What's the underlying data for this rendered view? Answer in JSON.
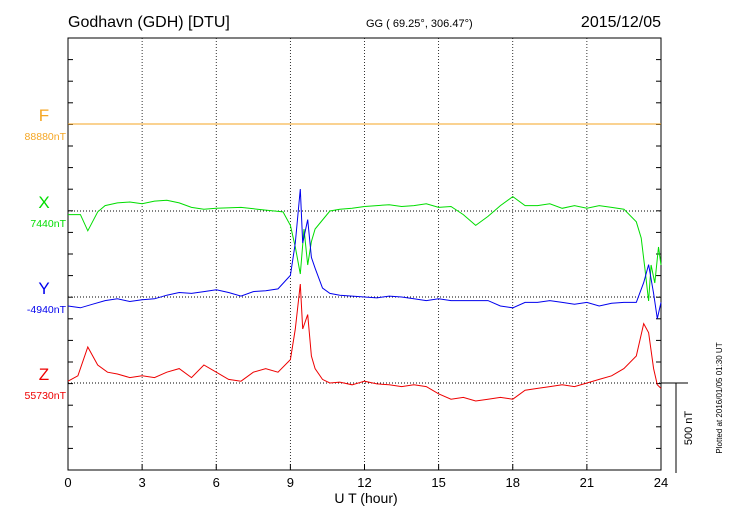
{
  "header": {
    "station": "Godhavn (GDH)  [DTU]",
    "coords": "GG ( 69.25°, 306.47°)",
    "date": "2015/12/05"
  },
  "footer": {
    "plotted": "Plotted at 2016/01/05 01:30 UT"
  },
  "chart_data": {
    "type": "line",
    "xlabel": "U T (hour)",
    "xlim": [
      0,
      24
    ],
    "xticks": [
      "0",
      "3",
      "6",
      "9",
      "12",
      "15",
      "18",
      "21",
      "24"
    ],
    "scale_bar": {
      "label": "500 nT",
      "nT": 500
    },
    "series": [
      {
        "name": "F",
        "baseline_label": "88880nT",
        "color": "#f5a623",
        "points": [
          [
            0,
            0
          ],
          [
            24,
            0
          ]
        ]
      },
      {
        "name": "X",
        "baseline_label": "7440nT",
        "color": "#00dd00",
        "points": [
          [
            0,
            -20
          ],
          [
            0.5,
            -20
          ],
          [
            0.8,
            -110
          ],
          [
            1.2,
            -5
          ],
          [
            1.5,
            30
          ],
          [
            2.0,
            45
          ],
          [
            2.5,
            50
          ],
          [
            3.0,
            40
          ],
          [
            3.5,
            55
          ],
          [
            4.0,
            60
          ],
          [
            4.5,
            45
          ],
          [
            5.0,
            20
          ],
          [
            5.5,
            10
          ],
          [
            6.0,
            15
          ],
          [
            7.0,
            20
          ],
          [
            8.0,
            5
          ],
          [
            8.7,
            -5
          ],
          [
            9.0,
            -80
          ],
          [
            9.2,
            -200
          ],
          [
            9.4,
            -350
          ],
          [
            9.55,
            -100
          ],
          [
            9.7,
            -300
          ],
          [
            9.85,
            -170
          ],
          [
            10.0,
            -100
          ],
          [
            10.3,
            -50
          ],
          [
            10.6,
            0
          ],
          [
            11.0,
            10
          ],
          [
            11.5,
            15
          ],
          [
            12.0,
            25
          ],
          [
            12.5,
            30
          ],
          [
            13.0,
            35
          ],
          [
            13.5,
            25
          ],
          [
            14.0,
            30
          ],
          [
            14.5,
            40
          ],
          [
            15.0,
            20
          ],
          [
            15.5,
            25
          ],
          [
            16.0,
            -20
          ],
          [
            16.5,
            -80
          ],
          [
            17.0,
            -30
          ],
          [
            17.5,
            30
          ],
          [
            18.0,
            80
          ],
          [
            18.5,
            30
          ],
          [
            19.0,
            30
          ],
          [
            19.5,
            40
          ],
          [
            20.0,
            15
          ],
          [
            20.5,
            30
          ],
          [
            21.0,
            15
          ],
          [
            21.5,
            30
          ],
          [
            22.0,
            20
          ],
          [
            22.5,
            10
          ],
          [
            23.0,
            -60
          ],
          [
            23.2,
            -150
          ],
          [
            23.35,
            -320
          ],
          [
            23.5,
            -500
          ],
          [
            23.6,
            -300
          ],
          [
            23.75,
            -400
          ],
          [
            23.9,
            -200
          ],
          [
            24.0,
            -300
          ]
        ]
      },
      {
        "name": "Y",
        "baseline_label": "-4940nT",
        "color": "#0000ee",
        "points": [
          [
            0,
            -50
          ],
          [
            0.5,
            -60
          ],
          [
            1.0,
            -40
          ],
          [
            1.5,
            -20
          ],
          [
            2.0,
            -10
          ],
          [
            2.5,
            -25
          ],
          [
            3.0,
            -15
          ],
          [
            3.5,
            -10
          ],
          [
            4.0,
            10
          ],
          [
            4.5,
            25
          ],
          [
            5.0,
            20
          ],
          [
            5.5,
            30
          ],
          [
            6.0,
            40
          ],
          [
            6.5,
            25
          ],
          [
            7.0,
            5
          ],
          [
            7.5,
            30
          ],
          [
            8.0,
            35
          ],
          [
            8.5,
            45
          ],
          [
            9.0,
            120
          ],
          [
            9.2,
            300
          ],
          [
            9.4,
            600
          ],
          [
            9.5,
            300
          ],
          [
            9.7,
            430
          ],
          [
            9.85,
            220
          ],
          [
            10.0,
            160
          ],
          [
            10.3,
            50
          ],
          [
            10.6,
            20
          ],
          [
            11.0,
            10
          ],
          [
            11.5,
            5
          ],
          [
            12.0,
            0
          ],
          [
            12.5,
            -5
          ],
          [
            13.0,
            5
          ],
          [
            13.5,
            0
          ],
          [
            14.0,
            -10
          ],
          [
            14.5,
            -20
          ],
          [
            15.0,
            -10
          ],
          [
            15.5,
            -20
          ],
          [
            16.0,
            -20
          ],
          [
            16.5,
            -20
          ],
          [
            17.0,
            -20
          ],
          [
            17.5,
            -50
          ],
          [
            18.0,
            -60
          ],
          [
            18.5,
            -30
          ],
          [
            19.0,
            -30
          ],
          [
            19.5,
            -20
          ],
          [
            20.0,
            -30
          ],
          [
            20.5,
            -40
          ],
          [
            21.0,
            -30
          ],
          [
            21.5,
            -50
          ],
          [
            22.0,
            -35
          ],
          [
            22.5,
            -30
          ],
          [
            23.0,
            -30
          ],
          [
            23.3,
            80
          ],
          [
            23.5,
            180
          ],
          [
            23.7,
            20
          ],
          [
            23.85,
            -120
          ],
          [
            24.0,
            -30
          ]
        ]
      },
      {
        "name": "Z",
        "baseline_label": "55730nT",
        "color": "#ee0000",
        "points": [
          [
            0,
            10
          ],
          [
            0.4,
            40
          ],
          [
            0.8,
            200
          ],
          [
            1.2,
            100
          ],
          [
            1.6,
            60
          ],
          [
            2.0,
            50
          ],
          [
            2.5,
            30
          ],
          [
            3.0,
            40
          ],
          [
            3.5,
            30
          ],
          [
            4.0,
            60
          ],
          [
            4.5,
            80
          ],
          [
            5.0,
            30
          ],
          [
            5.5,
            100
          ],
          [
            6.0,
            60
          ],
          [
            6.5,
            20
          ],
          [
            7.0,
            10
          ],
          [
            7.5,
            60
          ],
          [
            8.0,
            80
          ],
          [
            8.5,
            60
          ],
          [
            9.0,
            130
          ],
          [
            9.2,
            300
          ],
          [
            9.4,
            550
          ],
          [
            9.5,
            300
          ],
          [
            9.7,
            380
          ],
          [
            9.85,
            150
          ],
          [
            10.0,
            80
          ],
          [
            10.3,
            20
          ],
          [
            10.6,
            0
          ],
          [
            11.0,
            5
          ],
          [
            11.5,
            -10
          ],
          [
            12.0,
            10
          ],
          [
            12.5,
            -5
          ],
          [
            13.0,
            -10
          ],
          [
            13.5,
            -20
          ],
          [
            14.0,
            -10
          ],
          [
            14.5,
            -20
          ],
          [
            15.0,
            -60
          ],
          [
            15.5,
            -90
          ],
          [
            16.0,
            -80
          ],
          [
            16.5,
            -100
          ],
          [
            17.0,
            -90
          ],
          [
            17.5,
            -80
          ],
          [
            18.0,
            -90
          ],
          [
            18.5,
            -40
          ],
          [
            19.0,
            -30
          ],
          [
            19.5,
            -20
          ],
          [
            20.0,
            -10
          ],
          [
            20.5,
            -20
          ],
          [
            21.0,
            0
          ],
          [
            21.5,
            20
          ],
          [
            22.0,
            40
          ],
          [
            22.5,
            80
          ],
          [
            23.0,
            150
          ],
          [
            23.3,
            330
          ],
          [
            23.5,
            280
          ],
          [
            23.7,
            80
          ],
          [
            23.85,
            -10
          ],
          [
            24.0,
            -30
          ]
        ]
      }
    ]
  }
}
